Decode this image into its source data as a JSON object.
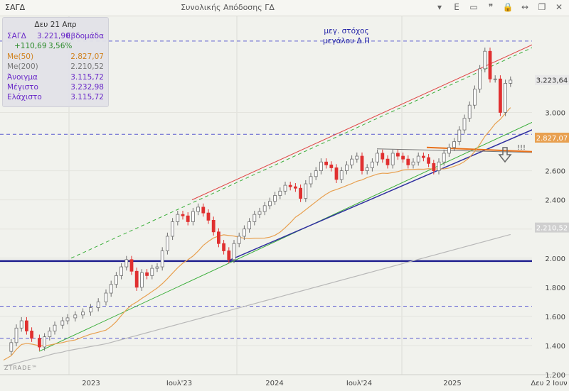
{
  "header": {
    "symbol": "ΣΑΓΔ",
    "title": "Συνολικής Απόδοσης ΓΔ",
    "icons": [
      "down-arrow-icon",
      "edit-icon",
      "square-icon",
      "quote-icon",
      "lock-icon",
      "arrows-icon",
      "window-icon",
      "close-icon"
    ]
  },
  "info_panel": {
    "date": "Δευ 21 Απρ",
    "symbol_line": "ΣΑΓΔ",
    "last_value": "3.221,90",
    "period": "Εβδομάδα",
    "change": "+110,69",
    "change_pct": "3,56%",
    "ma50_label": "Me(50)",
    "ma50_value": "2.827,07",
    "ma200_label": "Me(200)",
    "ma200_value": "2.210,52",
    "open_label": "Άνοιγμα",
    "open_value": "3.115,72",
    "high_label": "Μέγιστο",
    "high_value": "3.232,98",
    "low_label": "Ελάχιστο",
    "low_value": "3.115,72"
  },
  "annotations": {
    "target_line1": "μεγ. στόχος",
    "target_line2": "μεγάλου Δ.Π",
    "exclaim": "!!!"
  },
  "watermark": "ZTRADE™",
  "colors": {
    "up": "#6f6f6f",
    "down": "#e03030",
    "ma50": "#e8a050",
    "ma200": "#b8b8b8",
    "blue_line": "#1f1f8f",
    "channel_red": "#e04545",
    "channel_green": "#3aae3a",
    "orange_line": "#e8701a"
  },
  "chart_data": {
    "type": "candlestick",
    "period": "weekly",
    "y_axis": {
      "ticks": [
        "1.200",
        "1.400",
        "1.600",
        "1.800",
        "2.000",
        "2.200",
        "2.400",
        "2.600",
        "3.000"
      ],
      "range": [
        1180,
        3500
      ]
    },
    "x_axis": {
      "labels": [
        "2023",
        "Ιουλ'23",
        "2024",
        "Ιουλ'24",
        "2025",
        "Δευ 2 Ιουν"
      ]
    },
    "price_labels": {
      "last": "3.223,64",
      "ma50": "2.827,07",
      "ma200": "2.210,52"
    },
    "horizontal_levels": [
      3490,
      2850,
      1980,
      1670,
      1450
    ],
    "close_path": [
      [
        0,
        1360
      ],
      [
        6,
        1420
      ],
      [
        10,
        1520
      ],
      [
        14,
        1570
      ],
      [
        18,
        1500
      ],
      [
        22,
        1450
      ],
      [
        28,
        1390
      ],
      [
        32,
        1460
      ],
      [
        36,
        1500
      ],
      [
        40,
        1540
      ],
      [
        46,
        1570
      ],
      [
        50,
        1590
      ],
      [
        56,
        1610
      ],
      [
        62,
        1630
      ],
      [
        68,
        1660
      ],
      [
        74,
        1700
      ],
      [
        80,
        1760
      ],
      [
        84,
        1820
      ],
      [
        88,
        1880
      ],
      [
        92,
        1940
      ],
      [
        96,
        1990
      ],
      [
        100,
        1910
      ],
      [
        104,
        1800
      ],
      [
        108,
        1900
      ],
      [
        112,
        1880
      ],
      [
        116,
        1930
      ],
      [
        120,
        1940
      ],
      [
        124,
        2050
      ],
      [
        128,
        2150
      ],
      [
        132,
        2250
      ],
      [
        136,
        2300
      ],
      [
        140,
        2290
      ],
      [
        144,
        2250
      ],
      [
        148,
        2320
      ],
      [
        152,
        2350
      ],
      [
        156,
        2310
      ],
      [
        160,
        2260
      ],
      [
        164,
        2180
      ],
      [
        168,
        2100
      ],
      [
        172,
        2050
      ],
      [
        176,
        1990
      ],
      [
        180,
        2100
      ],
      [
        184,
        2150
      ],
      [
        188,
        2200
      ],
      [
        192,
        2250
      ],
      [
        196,
        2300
      ],
      [
        200,
        2320
      ],
      [
        204,
        2360
      ],
      [
        208,
        2390
      ],
      [
        212,
        2430
      ],
      [
        216,
        2460
      ],
      [
        220,
        2500
      ],
      [
        224,
        2490
      ],
      [
        228,
        2480
      ],
      [
        232,
        2410
      ],
      [
        236,
        2510
      ],
      [
        240,
        2560
      ],
      [
        244,
        2600
      ],
      [
        248,
        2660
      ],
      [
        252,
        2640
      ],
      [
        256,
        2620
      ],
      [
        260,
        2540
      ],
      [
        264,
        2600
      ],
      [
        268,
        2640
      ],
      [
        272,
        2680
      ],
      [
        276,
        2700
      ],
      [
        280,
        2600
      ],
      [
        284,
        2620
      ],
      [
        288,
        2660
      ],
      [
        292,
        2720
      ],
      [
        296,
        2680
      ],
      [
        300,
        2640
      ],
      [
        304,
        2720
      ],
      [
        308,
        2700
      ],
      [
        312,
        2680
      ],
      [
        316,
        2640
      ],
      [
        320,
        2660
      ],
      [
        324,
        2700
      ],
      [
        328,
        2690
      ],
      [
        332,
        2650
      ],
      [
        336,
        2600
      ],
      [
        340,
        2660
      ],
      [
        344,
        2720
      ],
      [
        348,
        2760
      ],
      [
        352,
        2800
      ],
      [
        356,
        2880
      ],
      [
        360,
        2960
      ],
      [
        364,
        3050
      ],
      [
        368,
        3160
      ],
      [
        372,
        3300
      ],
      [
        376,
        3420
      ],
      [
        380,
        3230
      ],
      [
        384,
        3230
      ],
      [
        388,
        3000
      ],
      [
        392,
        3200
      ],
      [
        396,
        3222
      ]
    ]
  }
}
